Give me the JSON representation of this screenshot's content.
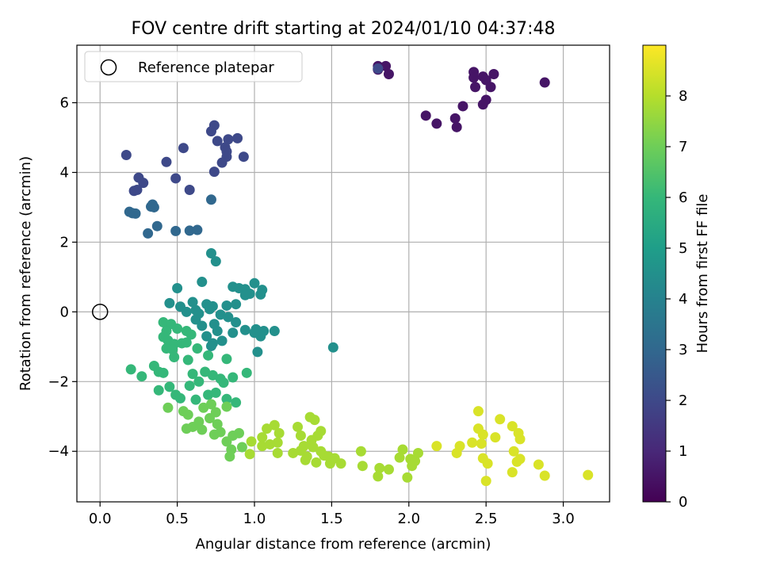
{
  "chart_data": {
    "type": "scatter",
    "title": "FOV centre drift starting at 2024/01/10 04:37:48",
    "xlabel": "Angular distance from reference (arcmin)",
    "ylabel": "Rotation from reference (arcmin)",
    "xlim": [
      -0.15,
      3.3
    ],
    "ylim": [
      -5.45,
      7.65
    ],
    "xticks": [
      0.0,
      0.5,
      1.0,
      1.5,
      2.0,
      2.5,
      3.0
    ],
    "xtick_labels": [
      "0.0",
      "0.5",
      "1.0",
      "1.5",
      "2.0",
      "2.5",
      "3.0"
    ],
    "yticks": [
      -4,
      -2,
      0,
      2,
      4,
      6
    ],
    "ytick_labels": [
      "−4",
      "−2",
      "0",
      "2",
      "4",
      "6"
    ],
    "grid": true,
    "legend": {
      "placement": "upper-left",
      "entries": [
        "Reference platepar"
      ]
    },
    "reference_point": {
      "x": 0.0,
      "y": 0.0,
      "label": "Reference platepar"
    },
    "colorbar": {
      "label": "Hours from first FF file",
      "range": [
        0,
        9
      ],
      "ticks": [
        0,
        1,
        2,
        3,
        4,
        5,
        6,
        7,
        8
      ],
      "tick_labels": [
        "0",
        "1",
        "2",
        "3",
        "4",
        "5",
        "6",
        "7",
        "8"
      ],
      "colormap": "viridis",
      "colors": [
        "#440154",
        "#482878",
        "#3e4989",
        "#31688e",
        "#26828e",
        "#1f9e89",
        "#35b779",
        "#6ece58",
        "#b5de2b",
        "#fde725"
      ]
    },
    "series": [
      {
        "hours": 0.5,
        "points": [
          [
            1.8,
            7.05
          ],
          [
            1.85,
            7.05
          ],
          [
            1.8,
            6.95
          ],
          [
            1.87,
            6.82
          ],
          [
            2.42,
            6.88
          ],
          [
            2.42,
            6.72
          ],
          [
            2.48,
            6.75
          ],
          [
            2.55,
            6.82
          ],
          [
            2.5,
            6.65
          ],
          [
            2.43,
            6.45
          ],
          [
            2.53,
            6.45
          ],
          [
            2.88,
            6.58
          ],
          [
            2.5,
            6.08
          ],
          [
            2.48,
            5.95
          ],
          [
            2.35,
            5.9
          ],
          [
            2.11,
            5.63
          ],
          [
            2.3,
            5.55
          ],
          [
            2.18,
            5.4
          ],
          [
            2.31,
            5.3
          ]
        ]
      },
      {
        "hours": 2.0,
        "points": [
          [
            1.8,
            6.98
          ],
          [
            0.74,
            5.35
          ],
          [
            0.72,
            5.18
          ],
          [
            0.76,
            4.9
          ],
          [
            0.83,
            4.95
          ],
          [
            0.89,
            4.98
          ],
          [
            0.81,
            4.72
          ],
          [
            0.82,
            4.6
          ],
          [
            0.54,
            4.7
          ],
          [
            0.17,
            4.5
          ],
          [
            0.93,
            4.45
          ],
          [
            0.82,
            4.45
          ],
          [
            0.79,
            4.28
          ],
          [
            0.43,
            4.3
          ],
          [
            0.74,
            4.02
          ],
          [
            0.25,
            3.85
          ],
          [
            0.49,
            3.83
          ],
          [
            0.28,
            3.7
          ],
          [
            0.24,
            3.5
          ],
          [
            0.22,
            3.47
          ],
          [
            0.58,
            3.5
          ]
        ]
      },
      {
        "hours": 3.0,
        "points": [
          [
            0.72,
            3.22
          ],
          [
            0.34,
            3.08
          ],
          [
            0.33,
            3.02
          ],
          [
            0.35,
            3.0
          ],
          [
            0.19,
            2.87
          ],
          [
            0.21,
            2.83
          ],
          [
            0.23,
            2.82
          ],
          [
            0.37,
            2.46
          ],
          [
            0.58,
            2.33
          ],
          [
            0.63,
            2.35
          ],
          [
            0.49,
            2.32
          ],
          [
            0.31,
            2.25
          ]
        ]
      },
      {
        "hours": 4.5,
        "points": [
          [
            0.72,
            1.68
          ],
          [
            0.75,
            1.45
          ],
          [
            0.66,
            0.86
          ],
          [
            1.0,
            0.82
          ],
          [
            0.86,
            0.72
          ],
          [
            0.9,
            0.68
          ],
          [
            0.94,
            0.65
          ],
          [
            1.05,
            0.63
          ],
          [
            0.5,
            0.68
          ],
          [
            0.97,
            0.52
          ],
          [
            1.04,
            0.5
          ],
          [
            0.94,
            0.48
          ],
          [
            0.6,
            0.28
          ],
          [
            0.52,
            0.15
          ],
          [
            0.62,
            0.05
          ],
          [
            0.69,
            0.22
          ],
          [
            0.73,
            0.16
          ],
          [
            0.82,
            0.18
          ],
          [
            0.88,
            0.22
          ],
          [
            0.71,
            0.08
          ],
          [
            0.56,
            0.0
          ],
          [
            0.64,
            -0.05
          ],
          [
            0.78,
            -0.08
          ],
          [
            0.83,
            -0.15
          ],
          [
            0.88,
            -0.3
          ],
          [
            0.94,
            -0.52
          ],
          [
            1.01,
            -0.5
          ],
          [
            1.06,
            -0.55
          ],
          [
            1.13,
            -0.55
          ],
          [
            1.04,
            -0.7
          ],
          [
            1.0,
            -0.6
          ],
          [
            0.74,
            -0.35
          ],
          [
            0.66,
            -0.4
          ],
          [
            0.76,
            -0.55
          ],
          [
            0.69,
            -0.7
          ],
          [
            0.79,
            -0.83
          ],
          [
            0.73,
            -0.9
          ],
          [
            0.72,
            -0.98
          ],
          [
            0.86,
            -0.6
          ],
          [
            1.02,
            -1.15
          ],
          [
            1.51,
            -1.02
          ],
          [
            0.45,
            0.25
          ],
          [
            0.62,
            -0.22
          ]
        ]
      },
      {
        "hours": 6.0,
        "points": [
          [
            0.41,
            -0.3
          ],
          [
            0.46,
            -0.35
          ],
          [
            0.43,
            -0.55
          ],
          [
            0.5,
            -0.48
          ],
          [
            0.56,
            -0.55
          ],
          [
            0.41,
            -0.72
          ],
          [
            0.44,
            -0.82
          ],
          [
            0.48,
            -0.92
          ],
          [
            0.53,
            -0.9
          ],
          [
            0.43,
            -1.05
          ],
          [
            0.47,
            -1.08
          ],
          [
            0.56,
            -0.88
          ],
          [
            0.59,
            -0.65
          ],
          [
            0.63,
            -1.05
          ],
          [
            0.48,
            -1.3
          ],
          [
            0.57,
            -1.38
          ],
          [
            0.7,
            -1.25
          ],
          [
            0.82,
            -1.35
          ],
          [
            0.35,
            -1.55
          ],
          [
            0.38,
            -1.72
          ],
          [
            0.41,
            -1.75
          ],
          [
            0.2,
            -1.65
          ],
          [
            0.27,
            -1.85
          ],
          [
            0.6,
            -1.78
          ],
          [
            0.68,
            -1.72
          ],
          [
            0.73,
            -1.82
          ],
          [
            0.78,
            -1.92
          ],
          [
            0.86,
            -1.88
          ],
          [
            0.95,
            -1.75
          ],
          [
            0.64,
            -2.0
          ],
          [
            0.8,
            -2.03
          ],
          [
            0.58,
            -2.12
          ],
          [
            0.45,
            -2.15
          ],
          [
            0.38,
            -2.25
          ],
          [
            0.49,
            -2.38
          ],
          [
            0.52,
            -2.48
          ],
          [
            0.62,
            -2.52
          ],
          [
            0.7,
            -2.38
          ],
          [
            0.75,
            -2.32
          ],
          [
            0.82,
            -2.5
          ],
          [
            0.88,
            -2.6
          ]
        ]
      },
      {
        "hours": 7.0,
        "points": [
          [
            0.44,
            -2.75
          ],
          [
            0.54,
            -2.85
          ],
          [
            0.57,
            -2.95
          ],
          [
            0.67,
            -2.75
          ],
          [
            0.72,
            -2.65
          ],
          [
            0.75,
            -2.88
          ],
          [
            0.82,
            -2.72
          ],
          [
            0.64,
            -3.15
          ],
          [
            0.71,
            -3.05
          ],
          [
            0.76,
            -3.22
          ],
          [
            0.6,
            -3.3
          ],
          [
            0.66,
            -3.38
          ],
          [
            0.56,
            -3.35
          ],
          [
            0.74,
            -3.52
          ],
          [
            0.78,
            -3.45
          ],
          [
            0.86,
            -3.55
          ],
          [
            0.82,
            -3.72
          ],
          [
            0.85,
            -3.95
          ],
          [
            0.9,
            -3.48
          ],
          [
            0.84,
            -4.15
          ],
          [
            0.92,
            -3.88
          ]
        ]
      },
      {
        "hours": 7.8,
        "points": [
          [
            0.98,
            -3.72
          ],
          [
            1.05,
            -3.6
          ],
          [
            1.08,
            -3.35
          ],
          [
            1.13,
            -3.25
          ],
          [
            1.16,
            -3.48
          ],
          [
            1.05,
            -3.85
          ],
          [
            1.1,
            -3.8
          ],
          [
            0.97,
            -4.08
          ],
          [
            1.15,
            -3.75
          ],
          [
            1.15,
            -4.05
          ],
          [
            1.25,
            -4.05
          ],
          [
            1.28,
            -3.3
          ],
          [
            1.36,
            -3.02
          ],
          [
            1.39,
            -3.1
          ],
          [
            1.41,
            -3.55
          ],
          [
            1.43,
            -3.42
          ],
          [
            1.37,
            -3.68
          ],
          [
            1.43,
            -4.0
          ],
          [
            1.45,
            -4.12
          ],
          [
            1.48,
            -4.15
          ],
          [
            1.52,
            -4.2
          ],
          [
            1.56,
            -4.35
          ],
          [
            1.49,
            -4.35
          ],
          [
            1.3,
            -3.98
          ],
          [
            1.32,
            -3.85
          ],
          [
            1.34,
            -4.15
          ],
          [
            1.3,
            -3.55
          ],
          [
            1.38,
            -3.88
          ],
          [
            1.33,
            -4.25
          ],
          [
            1.4,
            -4.32
          ],
          [
            1.69,
            -4.0
          ],
          [
            1.7,
            -4.42
          ],
          [
            1.81,
            -4.48
          ],
          [
            1.8,
            -4.72
          ],
          [
            1.87,
            -4.52
          ],
          [
            1.94,
            -4.18
          ],
          [
            1.96,
            -3.95
          ],
          [
            2.01,
            -4.22
          ],
          [
            2.02,
            -4.42
          ],
          [
            2.04,
            -4.28
          ],
          [
            1.99,
            -4.75
          ],
          [
            2.06,
            -4.05
          ]
        ]
      },
      {
        "hours": 8.5,
        "points": [
          [
            2.18,
            -3.85
          ],
          [
            2.33,
            -3.85
          ],
          [
            2.31,
            -4.05
          ],
          [
            2.41,
            -3.75
          ],
          [
            2.45,
            -2.85
          ],
          [
            2.45,
            -3.35
          ],
          [
            2.48,
            -3.52
          ],
          [
            2.47,
            -3.78
          ],
          [
            2.48,
            -4.2
          ],
          [
            2.51,
            -4.35
          ],
          [
            2.5,
            -4.85
          ],
          [
            2.56,
            -3.6
          ],
          [
            2.59,
            -3.08
          ],
          [
            2.67,
            -3.28
          ],
          [
            2.71,
            -3.48
          ],
          [
            2.72,
            -3.65
          ],
          [
            2.68,
            -4.0
          ],
          [
            2.7,
            -4.3
          ],
          [
            2.72,
            -4.22
          ],
          [
            2.67,
            -4.6
          ],
          [
            2.84,
            -4.38
          ],
          [
            2.88,
            -4.7
          ],
          [
            3.16,
            -4.68
          ]
        ]
      }
    ]
  }
}
